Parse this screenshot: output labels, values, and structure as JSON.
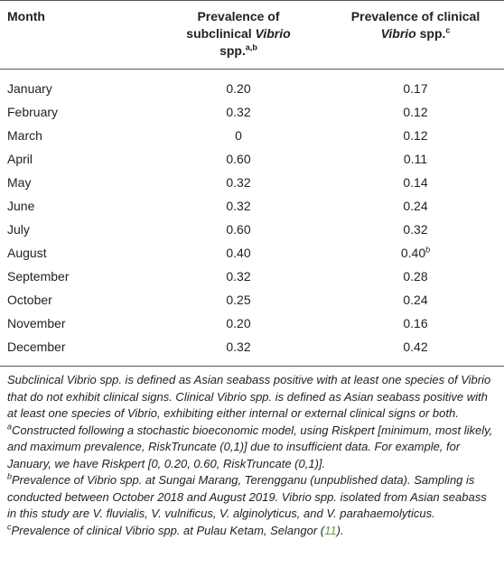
{
  "table": {
    "header": [
      [
        {
          "text": "Month"
        }
      ],
      [
        {
          "text": "Prevalence of subclinical "
        },
        {
          "text": "Vibrio",
          "italic": true
        },
        {
          "text": " spp."
        },
        {
          "text": "a,b",
          "sup": true
        }
      ],
      [
        {
          "text": "Prevalence of clinical "
        },
        {
          "text": "Vibrio",
          "italic": true
        },
        {
          "text": " spp."
        },
        {
          "text": "c",
          "sup": true
        }
      ]
    ],
    "rows": [
      [
        {
          "text": "January"
        },
        {
          "text": "0.20"
        },
        {
          "text": "0.17"
        }
      ],
      [
        {
          "text": "February"
        },
        {
          "text": "0.32"
        },
        {
          "text": "0.12"
        }
      ],
      [
        {
          "text": "March"
        },
        {
          "text": "0"
        },
        {
          "text": "0.12"
        }
      ],
      [
        {
          "text": "April"
        },
        {
          "text": "0.60"
        },
        {
          "text": "0.11"
        }
      ],
      [
        {
          "text": "May"
        },
        {
          "text": "0.32"
        },
        {
          "text": "0.14"
        }
      ],
      [
        {
          "text": "June"
        },
        {
          "text": "0.32"
        },
        {
          "text": "0.24"
        }
      ],
      [
        {
          "text": "July"
        },
        {
          "text": "0.60"
        },
        {
          "text": "0.32"
        }
      ],
      [
        {
          "text": "August"
        },
        {
          "text": "0.40"
        },
        {
          "text": "0.40",
          "sup": "b"
        }
      ],
      [
        {
          "text": "September"
        },
        {
          "text": "0.32"
        },
        {
          "text": "0.28"
        }
      ],
      [
        {
          "text": "October"
        },
        {
          "text": "0.25"
        },
        {
          "text": "0.24"
        }
      ],
      [
        {
          "text": "November"
        },
        {
          "text": "0.20"
        },
        {
          "text": "0.16"
        }
      ],
      [
        {
          "text": "December"
        },
        {
          "text": "0.32"
        },
        {
          "text": "0.42"
        }
      ]
    ],
    "footnotes": [
      {
        "text": "Subclinical Vibrio spp. is defined as Asian seabass positive with at least one species of Vibrio that do not exhibit clinical signs. Clinical Vibrio spp. is defined as Asian seabass positive with at least one species of Vibrio, exhibiting either internal or external clinical signs or both."
      },
      {
        "sup": "a",
        "text": "Constructed following a stochastic bioeconomic model, using Riskpert [minimum, most likely, and maximum prevalence, RiskTruncate (0,1)] due to insufficient data. For example, for January, we have Riskpert [0, 0.20, 0.60, RiskTruncate (0,1)]."
      },
      {
        "sup": "b",
        "text": "Prevalence of Vibrio spp. at Sungai Marang, Terengganu (unpublished data). Sampling is conducted between October 2018 and August 2019. Vibrio spp. isolated from Asian seabass in this study are V. fluvialis, V. vulnificus, V. alginolyticus, and V. parahaemolyticus."
      },
      {
        "sup": "c",
        "text": "Prevalence of clinical Vibrio spp. at Pulau Ketam, Selangor (",
        "ref": "11",
        "after": ")."
      }
    ]
  }
}
